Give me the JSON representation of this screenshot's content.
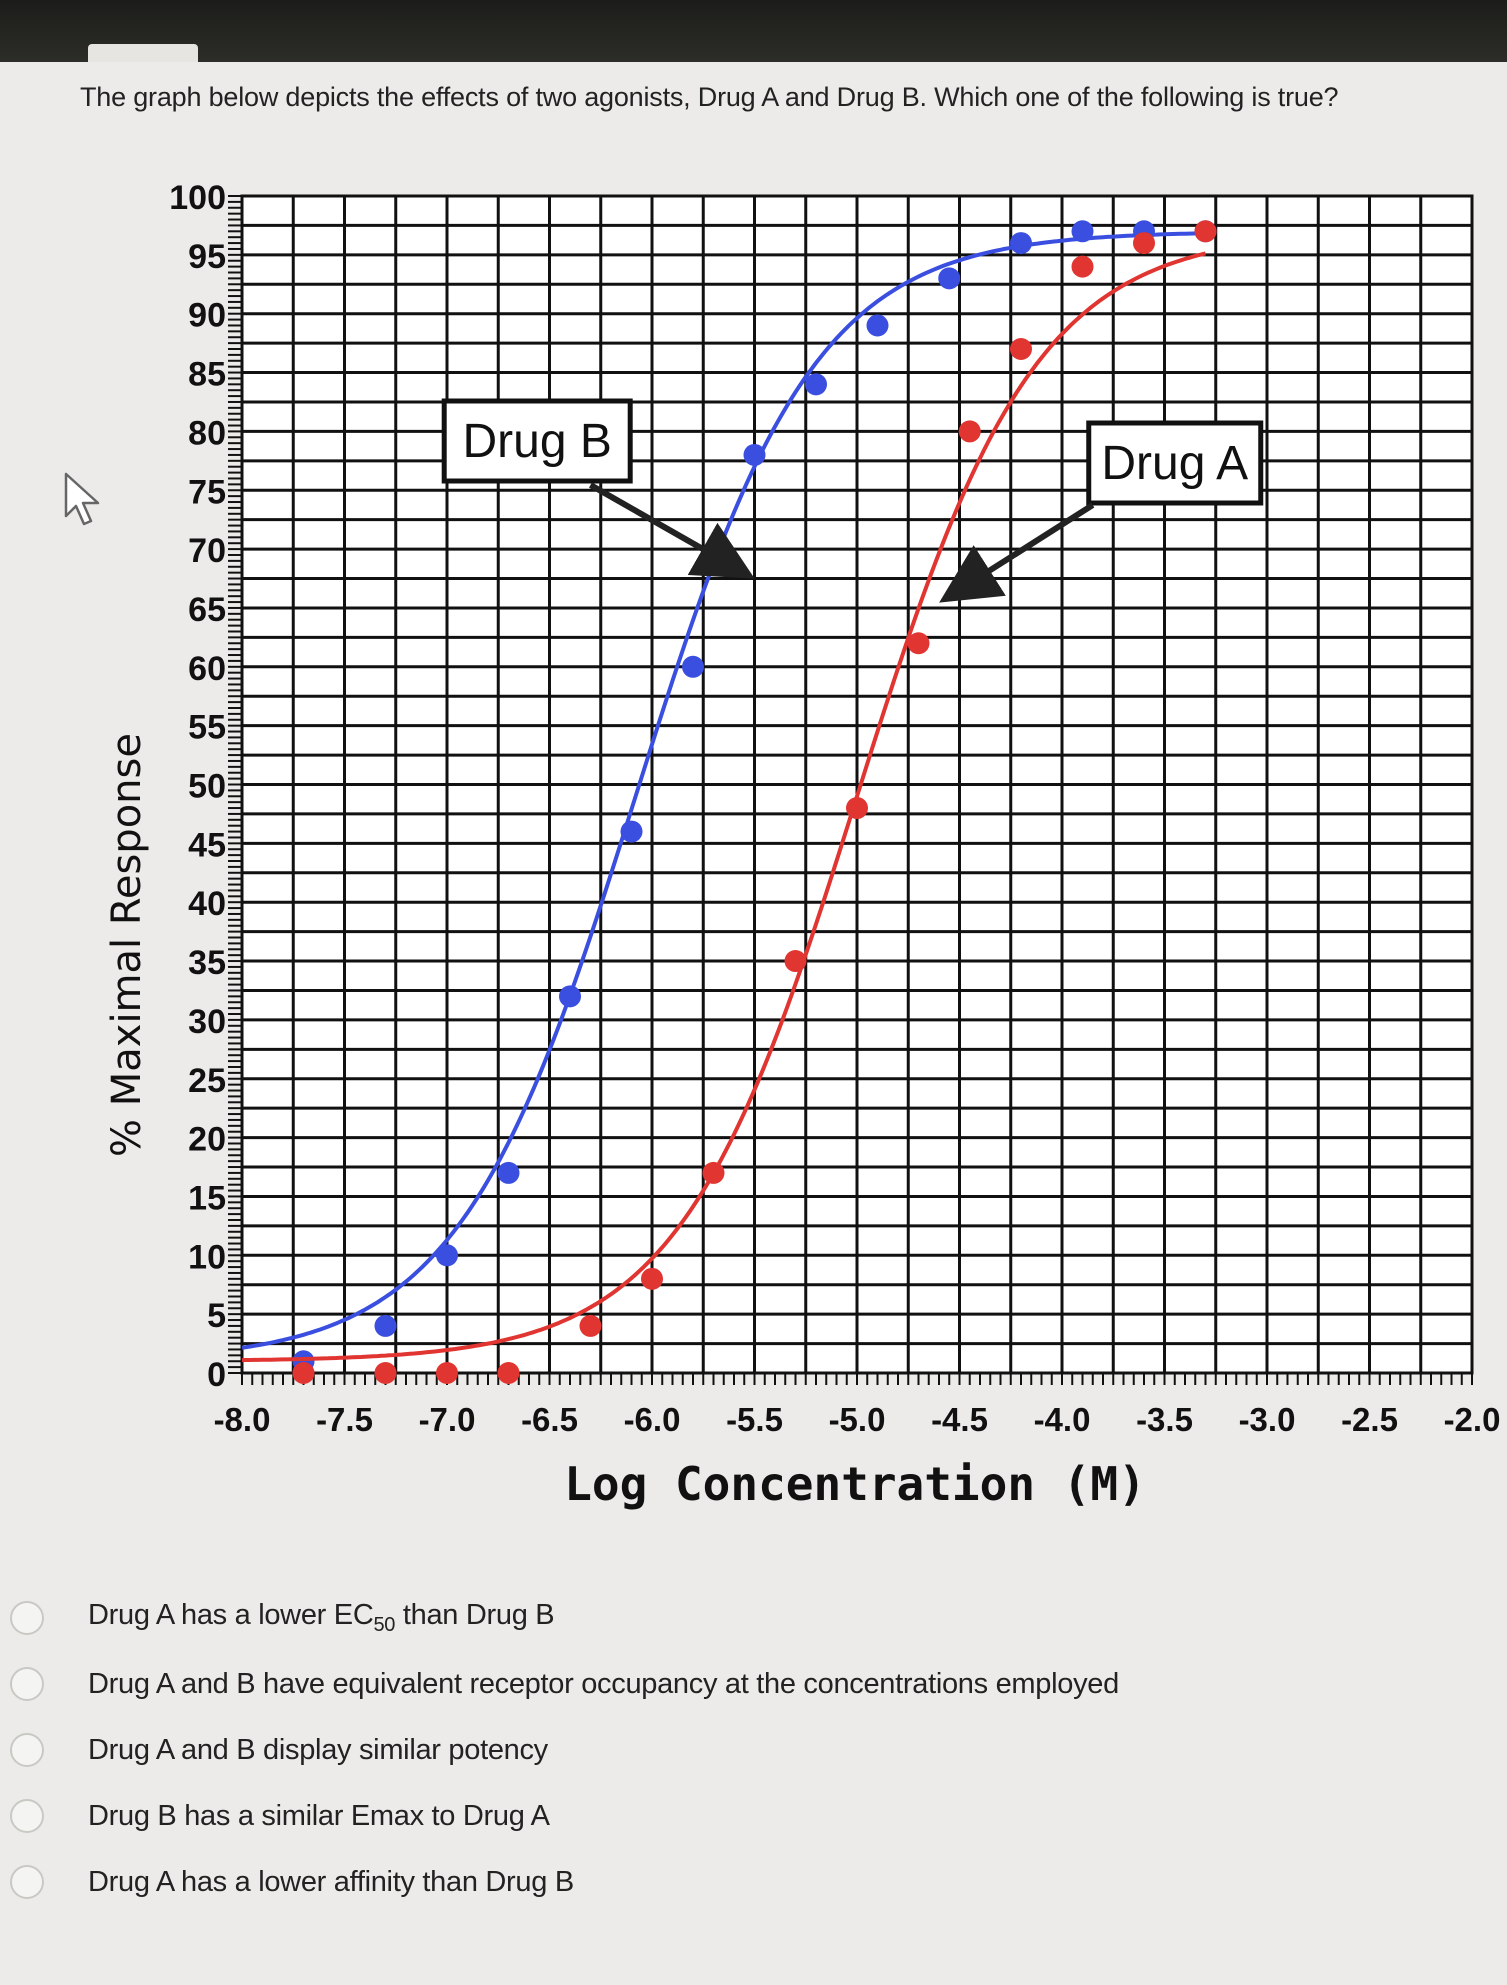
{
  "question": "The graph below depicts the effects of two agonists, Drug A and Drug B. Which one of the following is true?",
  "options": [
    {
      "label": "Drug A has a lower EC",
      "sub": "50",
      "suffix": " than Drug B"
    },
    {
      "label": "Drug A and B have equivalent receptor occupancy at the concentrations employed"
    },
    {
      "label": "Drug A and B display similar potency"
    },
    {
      "label": "Drug B has a similar Emax to Drug A"
    },
    {
      "label": "Drug A has a lower affinity than Drug B"
    }
  ],
  "chart_data": {
    "type": "line",
    "xlabel": "Log Concentration (M)",
    "ylabel": "% Maximal Response",
    "xlim": [
      -8.0,
      -2.0
    ],
    "ylim": [
      0,
      100
    ],
    "xticks": [
      "-8.0",
      "-7.5",
      "-7.0",
      "-6.5",
      "-6.0",
      "-5.5",
      "-5.0",
      "-4.5",
      "-4.0",
      "-3.5",
      "-3.0",
      "-2.5",
      "-2.0"
    ],
    "yticks": [
      "0",
      "5",
      "10",
      "15",
      "20",
      "25",
      "30",
      "35",
      "40",
      "45",
      "50",
      "55",
      "60",
      "65",
      "70",
      "75",
      "80",
      "85",
      "90",
      "95",
      "100"
    ],
    "grid": true,
    "series": [
      {
        "name": "Drug B",
        "color": "#3a4fe0",
        "ec50": -6.08,
        "hill": 1.0,
        "emax": 96,
        "x": [
          -7.7,
          -7.3,
          -7.0,
          -6.7,
          -6.4,
          -6.1,
          -5.8,
          -5.5,
          -5.2,
          -4.9,
          -4.55,
          -4.2,
          -3.9,
          -3.6,
          -3.3
        ],
        "y": [
          1,
          4,
          10,
          17,
          32,
          46,
          60,
          78,
          84,
          89,
          93,
          96,
          97,
          97,
          97
        ]
      },
      {
        "name": "Drug A",
        "color": "#e03530",
        "ec50": -5.0,
        "hill": 1.0,
        "emax": 96,
        "x": [
          -7.7,
          -7.3,
          -7.0,
          -6.7,
          -6.3,
          -6.0,
          -5.7,
          -5.3,
          -5.0,
          -4.7,
          -4.45,
          -4.2,
          -3.9,
          -3.6,
          -3.3
        ],
        "y": [
          0,
          0,
          0,
          0,
          4,
          8,
          17,
          35,
          48,
          62,
          80,
          87,
          94,
          96,
          97
        ]
      }
    ],
    "annotations": [
      "Drug B",
      "Drug A"
    ]
  }
}
